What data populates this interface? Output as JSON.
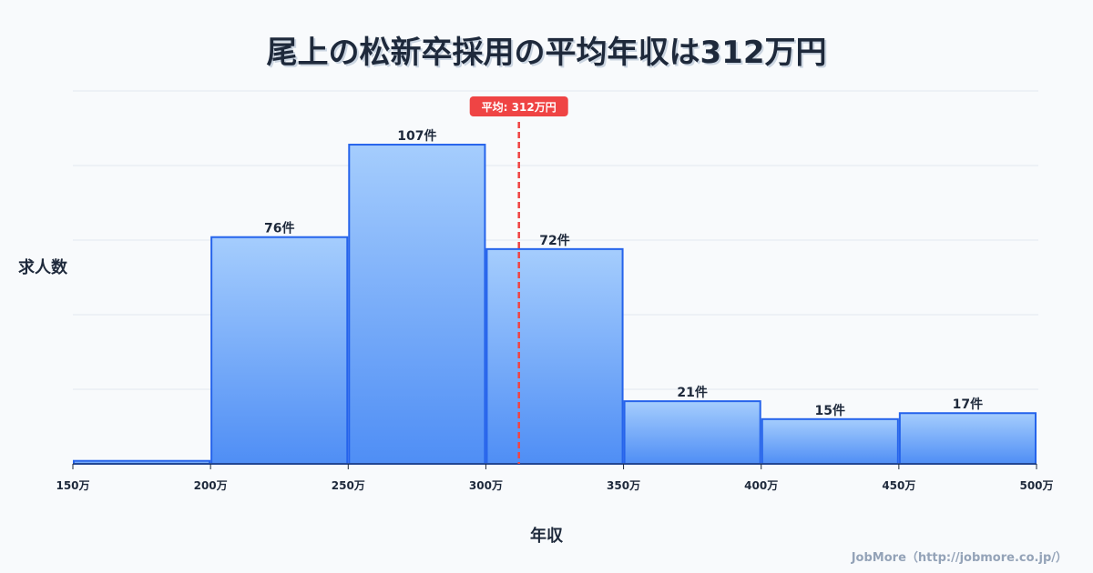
{
  "chart_data": {
    "type": "bar",
    "title": "尾上の松新卒採用の平均年収は312万円",
    "xlabel": "年収",
    "ylabel": "求人数",
    "bins": [
      {
        "from": 150,
        "to": 200,
        "value": 1,
        "label": ""
      },
      {
        "from": 200,
        "to": 250,
        "value": 76,
        "label": "76件"
      },
      {
        "from": 250,
        "to": 300,
        "value": 107,
        "label": "107件"
      },
      {
        "from": 300,
        "to": 350,
        "value": 72,
        "label": "72件"
      },
      {
        "from": 350,
        "to": 400,
        "value": 21,
        "label": "21件"
      },
      {
        "from": 400,
        "to": 450,
        "value": 15,
        "label": "15件"
      },
      {
        "from": 450,
        "to": 500,
        "value": 17,
        "label": "17件"
      }
    ],
    "x_ticks": [
      "150万",
      "200万",
      "250万",
      "300万",
      "350万",
      "400万",
      "450万",
      "500万"
    ],
    "xlim": [
      150,
      500
    ],
    "ylim": [
      0,
      125
    ],
    "grid_step": 25,
    "mean": {
      "value": 312,
      "label": "平均: 312万円"
    },
    "colors": {
      "bar_top": "#a5cdfd",
      "bar_bottom": "#4f8ef5",
      "bar_stroke": "#2563eb",
      "mean": "#ef4444",
      "grid": "#e2e8f0"
    }
  },
  "credit": "JobMore（http://jobmore.co.jp/）"
}
